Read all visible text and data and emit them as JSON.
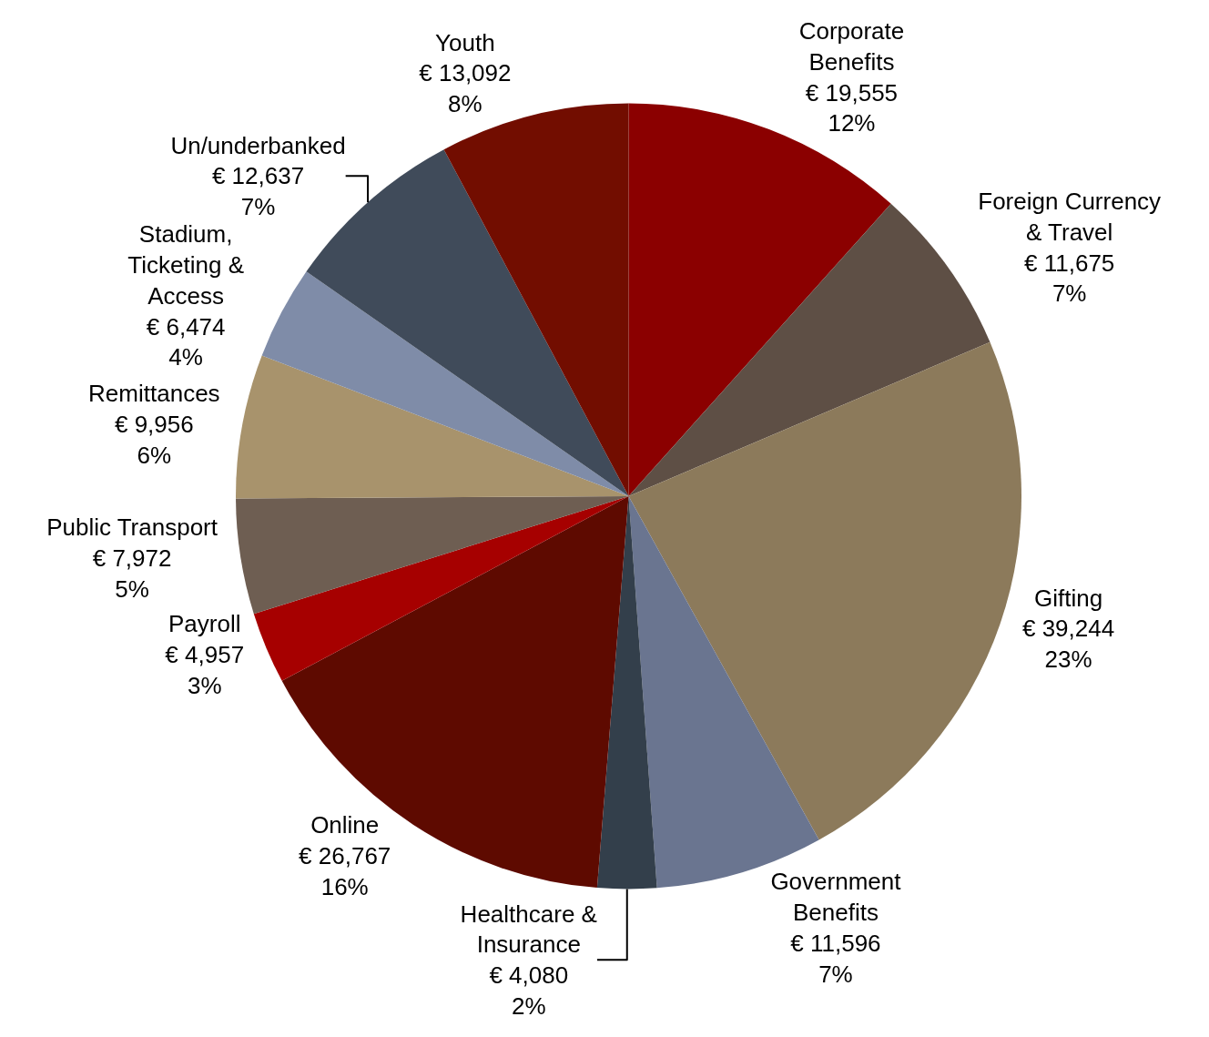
{
  "chart_data": {
    "type": "pie",
    "categories": [
      "Corporate\nBenefits",
      "Foreign Currency\n& Travel",
      "Gifting",
      "Government\nBenefits",
      "Healthcare &\nInsurance",
      "Online",
      "Payroll",
      "Public Transport",
      "Remittances",
      "Stadium,\nTicketing &\nAccess",
      "Un/underbanked",
      "Youth"
    ],
    "values": [
      19555,
      11675,
      39244,
      11596,
      4080,
      26767,
      4957,
      7972,
      9956,
      6474,
      12637,
      13092
    ],
    "value_labels": [
      "€ 19,555\n12%",
      "€ 11,675\n7%",
      "€ 39,244\n23%",
      "€ 11,596\n7%",
      "€ 4,080\n2%",
      "€ 26,767\n16%",
      "€ 4,957\n3%",
      "€ 7,972\n5%",
      "€ 9,956\n6%",
      "€ 6,474\n4%",
      "€ 12,637\n7%",
      "€ 13,092\n8%"
    ],
    "colors": [
      "#8b0000",
      "#5e4f45",
      "#8c7a5b",
      "#6a7590",
      "#333f4b",
      "#5e0a00",
      "#a60000",
      "#6e5e52",
      "#a8936c",
      "#7f8ca8",
      "#404b5a",
      "#720d00"
    ]
  }
}
